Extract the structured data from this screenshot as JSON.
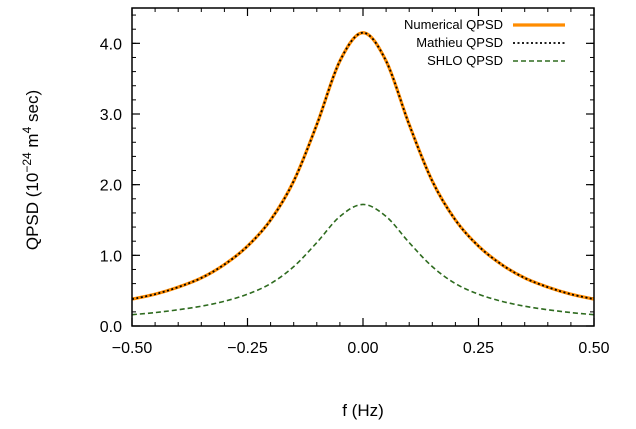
{
  "chart_data": {
    "type": "line",
    "xlabel": "f (Hz)",
    "ylabel_parts": [
      "QPSD (10",
      "−24",
      " m",
      "4",
      " sec)"
    ],
    "xlim": [
      -0.5,
      0.5
    ],
    "ylim": [
      0.0,
      4.5
    ],
    "x_ticks": [
      -0.5,
      -0.25,
      0.0,
      0.25,
      0.5
    ],
    "x_tick_labels": [
      "−0.50",
      "−0.25",
      "0.00",
      "0.25",
      "0.50"
    ],
    "y_ticks": [
      0.0,
      1.0,
      2.0,
      3.0,
      4.0
    ],
    "y_tick_labels": [
      "0.0",
      "1.0",
      "2.0",
      "3.0",
      "4.0"
    ],
    "legend_position": "top-right",
    "grid": false,
    "series": [
      {
        "name": "Numerical QPSD",
        "style": "solid",
        "color": "#ff8c00",
        "x": [
          -0.5,
          -0.45,
          -0.4,
          -0.35,
          -0.3,
          -0.25,
          -0.2,
          -0.15,
          -0.1,
          -0.05,
          0.0,
          0.05,
          0.1,
          0.15,
          0.2,
          0.25,
          0.3,
          0.35,
          0.4,
          0.45,
          0.5
        ],
        "y": [
          0.38,
          0.45,
          0.55,
          0.68,
          0.87,
          1.13,
          1.5,
          2.05,
          2.85,
          3.75,
          4.15,
          3.75,
          2.85,
          2.05,
          1.5,
          1.13,
          0.87,
          0.68,
          0.55,
          0.45,
          0.38
        ]
      },
      {
        "name": "Mathieu QPSD",
        "style": "dotted",
        "color": "#000000",
        "x": [
          -0.5,
          -0.45,
          -0.4,
          -0.35,
          -0.3,
          -0.25,
          -0.2,
          -0.15,
          -0.1,
          -0.05,
          0.0,
          0.05,
          0.1,
          0.15,
          0.2,
          0.25,
          0.3,
          0.35,
          0.4,
          0.45,
          0.5
        ],
        "y": [
          0.38,
          0.45,
          0.55,
          0.68,
          0.87,
          1.13,
          1.5,
          2.05,
          2.85,
          3.75,
          4.15,
          3.75,
          2.85,
          2.05,
          1.5,
          1.13,
          0.87,
          0.68,
          0.55,
          0.45,
          0.38
        ]
      },
      {
        "name": "SHLO QPSD",
        "style": "dashed",
        "color": "#2e6b1f",
        "x": [
          -0.5,
          -0.45,
          -0.4,
          -0.35,
          -0.3,
          -0.25,
          -0.2,
          -0.15,
          -0.1,
          -0.05,
          0.0,
          0.05,
          0.1,
          0.15,
          0.2,
          0.25,
          0.3,
          0.35,
          0.4,
          0.45,
          0.5
        ],
        "y": [
          0.16,
          0.19,
          0.23,
          0.28,
          0.35,
          0.45,
          0.6,
          0.84,
          1.18,
          1.55,
          1.72,
          1.55,
          1.18,
          0.84,
          0.6,
          0.45,
          0.35,
          0.28,
          0.23,
          0.19,
          0.16
        ]
      }
    ]
  }
}
